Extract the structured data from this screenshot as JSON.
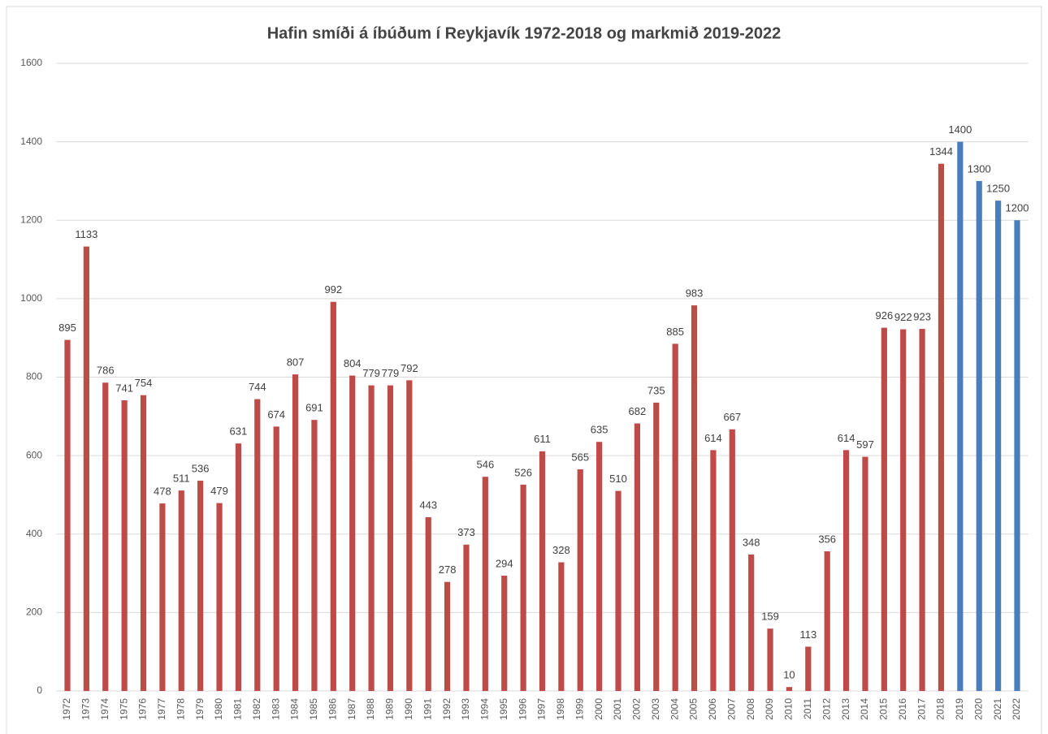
{
  "chart_data": {
    "type": "bar",
    "title": "Hafin smíði á íbúðum í Reykjavík 1972-2018 og markmið 2019-2022",
    "categories": [
      "1972",
      "1973",
      "1974",
      "1975",
      "1976",
      "1977",
      "1978",
      "1979",
      "1980",
      "1981",
      "1982",
      "1983",
      "1984",
      "1985",
      "1986",
      "1987",
      "1988",
      "1989",
      "1990",
      "1991",
      "1992",
      "1993",
      "1994",
      "1995",
      "1996",
      "1997",
      "1998",
      "1999",
      "2000",
      "2001",
      "2002",
      "2003",
      "2004",
      "2005",
      "2006",
      "2007",
      "2008",
      "2009",
      "2010",
      "2011",
      "2012",
      "2013",
      "2014",
      "2015",
      "2016",
      "2017",
      "2018",
      "2019",
      "2020",
      "2021",
      "2022"
    ],
    "values": [
      895,
      1133,
      786,
      741,
      754,
      478,
      511,
      536,
      479,
      631,
      744,
      674,
      807,
      691,
      992,
      804,
      779,
      779,
      792,
      443,
      278,
      373,
      546,
      294,
      526,
      611,
      328,
      565,
      635,
      510,
      682,
      735,
      885,
      983,
      614,
      667,
      348,
      159,
      10,
      113,
      356,
      614,
      597,
      926,
      922,
      923,
      1344,
      1400,
      1300,
      1250,
      1200
    ],
    "colors": [
      "#be4b48",
      "#be4b48",
      "#be4b48",
      "#be4b48",
      "#be4b48",
      "#be4b48",
      "#be4b48",
      "#be4b48",
      "#be4b48",
      "#be4b48",
      "#be4b48",
      "#be4b48",
      "#be4b48",
      "#be4b48",
      "#be4b48",
      "#be4b48",
      "#be4b48",
      "#be4b48",
      "#be4b48",
      "#be4b48",
      "#be4b48",
      "#be4b48",
      "#be4b48",
      "#be4b48",
      "#be4b48",
      "#be4b48",
      "#be4b48",
      "#be4b48",
      "#be4b48",
      "#be4b48",
      "#be4b48",
      "#be4b48",
      "#be4b48",
      "#be4b48",
      "#be4b48",
      "#be4b48",
      "#be4b48",
      "#be4b48",
      "#be4b48",
      "#be4b48",
      "#be4b48",
      "#be4b48",
      "#be4b48",
      "#be4b48",
      "#be4b48",
      "#be4b48",
      "#be4b48",
      "#4a7ebb",
      "#4a7ebb",
      "#4a7ebb",
      "#4a7ebb"
    ],
    "ylim": [
      0,
      1600
    ],
    "yticks": [
      0,
      200,
      400,
      600,
      800,
      1000,
      1200,
      1400,
      1600
    ],
    "grid": true
  }
}
